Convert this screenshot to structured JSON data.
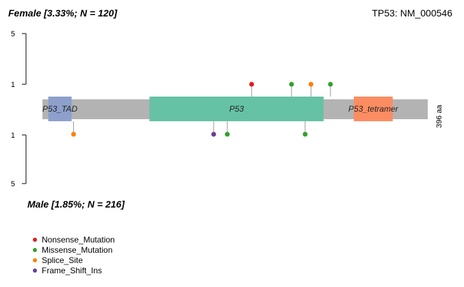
{
  "chart_data": {
    "type": "lollipop",
    "gene_title": "TP53: NM_000546",
    "top_panel": {
      "label": "Female [3.33%; N = 120]",
      "y_ticks": [
        "5",
        "1"
      ]
    },
    "bottom_panel": {
      "label": "Male [1.85%; N = 216]",
      "y_ticks": [
        "1",
        "5"
      ]
    },
    "protein_length_label": "396 aa",
    "protein_length": 396,
    "domains": [
      {
        "name": "P53_TAD",
        "start": 6,
        "end": 30,
        "color": "#8DA0CB"
      },
      {
        "name": "P53",
        "start": 110,
        "end": 289,
        "color": "#66C2A5"
      },
      {
        "name": "P53_tetramer",
        "start": 320,
        "end": 360,
        "color": "#FC8D62"
      }
    ],
    "mutations": {
      "top": [
        {
          "pos": 215,
          "count": 1,
          "type": "Nonsense_Mutation"
        },
        {
          "pos": 256,
          "count": 1,
          "type": "Missense_Mutation"
        },
        {
          "pos": 276,
          "count": 1,
          "type": "Splice_Site"
        },
        {
          "pos": 296,
          "count": 1,
          "type": "Missense_Mutation"
        }
      ],
      "bottom": [
        {
          "pos": 32,
          "count": 1,
          "type": "Splice_Site"
        },
        {
          "pos": 176,
          "count": 1,
          "type": "Frame_Shift_Ins"
        },
        {
          "pos": 190,
          "count": 1,
          "type": "Missense_Mutation"
        },
        {
          "pos": 270,
          "count": 1,
          "type": "Missense_Mutation"
        }
      ]
    },
    "legend": [
      {
        "label": "Nonsense_Mutation",
        "color": "#E41A1C"
      },
      {
        "label": "Missense_Mutation",
        "color": "#33A02C"
      },
      {
        "label": "Splice_Site",
        "color": "#FF7F00"
      },
      {
        "label": "Frame_Shift_Ins",
        "color": "#6A3D9A"
      }
    ]
  }
}
